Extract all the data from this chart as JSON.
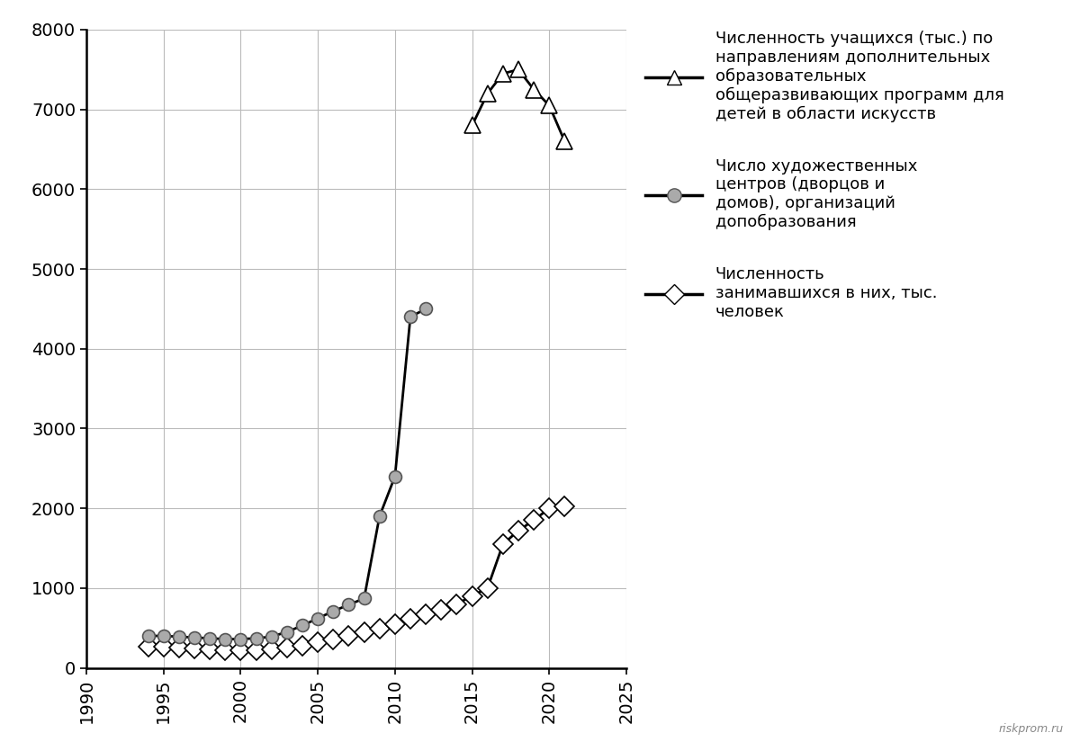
{
  "x_circles": [
    1994,
    1995,
    1996,
    1997,
    1998,
    1999,
    2000,
    2001,
    2002,
    2003,
    2004,
    2005,
    2006,
    2007,
    2008,
    2009,
    2010,
    2011,
    2012
  ],
  "y_circles": [
    400,
    400,
    390,
    380,
    370,
    360,
    360,
    370,
    390,
    450,
    530,
    620,
    710,
    790,
    870,
    1900,
    2400,
    4400,
    4500
  ],
  "x_diamonds": [
    1994,
    1995,
    1996,
    1997,
    1998,
    1999,
    2000,
    2001,
    2002,
    2003,
    2004,
    2005,
    2006,
    2007,
    2008,
    2009,
    2010,
    2011,
    2012,
    2013,
    2014,
    2015,
    2016,
    2017,
    2018,
    2019,
    2020,
    2021
  ],
  "y_diamonds": [
    270,
    260,
    250,
    240,
    230,
    220,
    215,
    220,
    235,
    255,
    280,
    320,
    360,
    400,
    445,
    490,
    545,
    610,
    670,
    730,
    800,
    900,
    1000,
    1550,
    1720,
    1850,
    2000,
    2020
  ],
  "x_triangles": [
    2015,
    2016,
    2017,
    2018,
    2019,
    2020,
    2021
  ],
  "y_triangles": [
    6800,
    7200,
    7450,
    7500,
    7250,
    7050,
    6600
  ],
  "xlim": [
    1990,
    2025
  ],
  "ylim": [
    0,
    8000
  ],
  "xticks": [
    1990,
    1995,
    2000,
    2005,
    2010,
    2015,
    2020,
    2025
  ],
  "yticks": [
    0,
    1000,
    2000,
    3000,
    4000,
    5000,
    6000,
    7000,
    8000
  ],
  "bg_color": "#ffffff",
  "grid_color": "#bbbbbb",
  "watermark": "riskprom.ru",
  "label_triangles": "Численность учащихся (тыс.) по\nнаправлениям дополнительных\nобразовательных\nобщеразвивающих программ для\nдетей в области искусств",
  "label_circles": "Число художественных\nцентров (дворцов и\nдомов), организаций\nдопобразования",
  "label_diamonds": "Численность\nзанимавшихся в них, тыс.\nчеловек",
  "circle_facecolor": "#aaaaaa",
  "circle_edgecolor": "#555555",
  "tick_fontsize": 14,
  "legend_fontsize": 13,
  "linewidth": 2.0,
  "marker_size_circle": 10,
  "marker_size_diamond": 11,
  "marker_size_triangle": 13
}
